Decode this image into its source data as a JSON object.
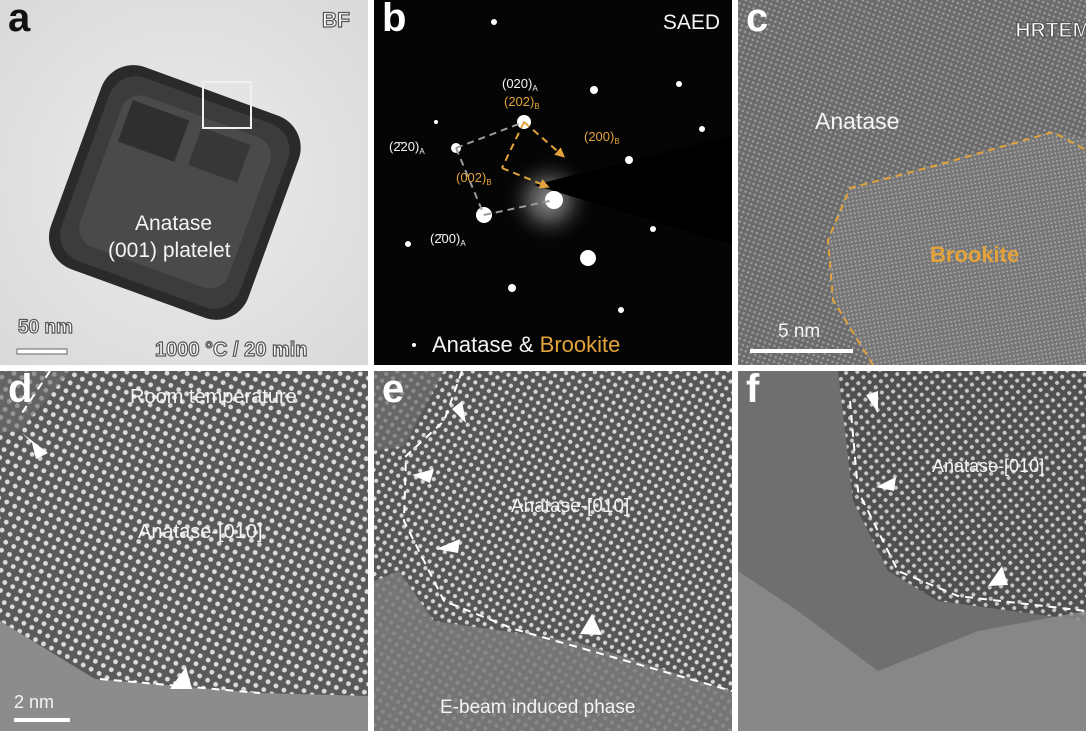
{
  "panels": {
    "a": {
      "letter": "a",
      "mode": "BF",
      "label_line1": "Anatase",
      "label_line2": "(001) platelet",
      "scale": "50 nm",
      "condition": "1000 °C / 20 min"
    },
    "b": {
      "letter": "b",
      "mode": "SAED",
      "spot_020": "(020)",
      "spot_020_sub": "A",
      "spot_202": "(202)",
      "spot_202_sub": "B",
      "spot_220": "(2̄20)",
      "spot_220_sub": "A",
      "spot_200b": "(200)",
      "spot_200b_sub": "B",
      "spot_002": "(002)",
      "spot_002_sub": "B",
      "spot_200a": "(2̄00)",
      "spot_200a_sub": "A",
      "caption_white": "Anatase &",
      "caption_orange": "Brookite"
    },
    "c": {
      "letter": "c",
      "mode": "HRTEM",
      "label_white": "Anatase",
      "label_orange": "Brookite",
      "scale": "5 nm"
    },
    "d": {
      "letter": "d",
      "title": "Room temperature",
      "label": "Anatase-[010]",
      "scale": "2 nm"
    },
    "e": {
      "letter": "e",
      "label": "Anatase-[010]",
      "caption": "E-beam induced phase"
    },
    "f": {
      "letter": "f",
      "label": "Anatase-[010]"
    }
  },
  "colors": {
    "accent_orange": "#e3a33a",
    "text_white": "#f4f4f4"
  }
}
